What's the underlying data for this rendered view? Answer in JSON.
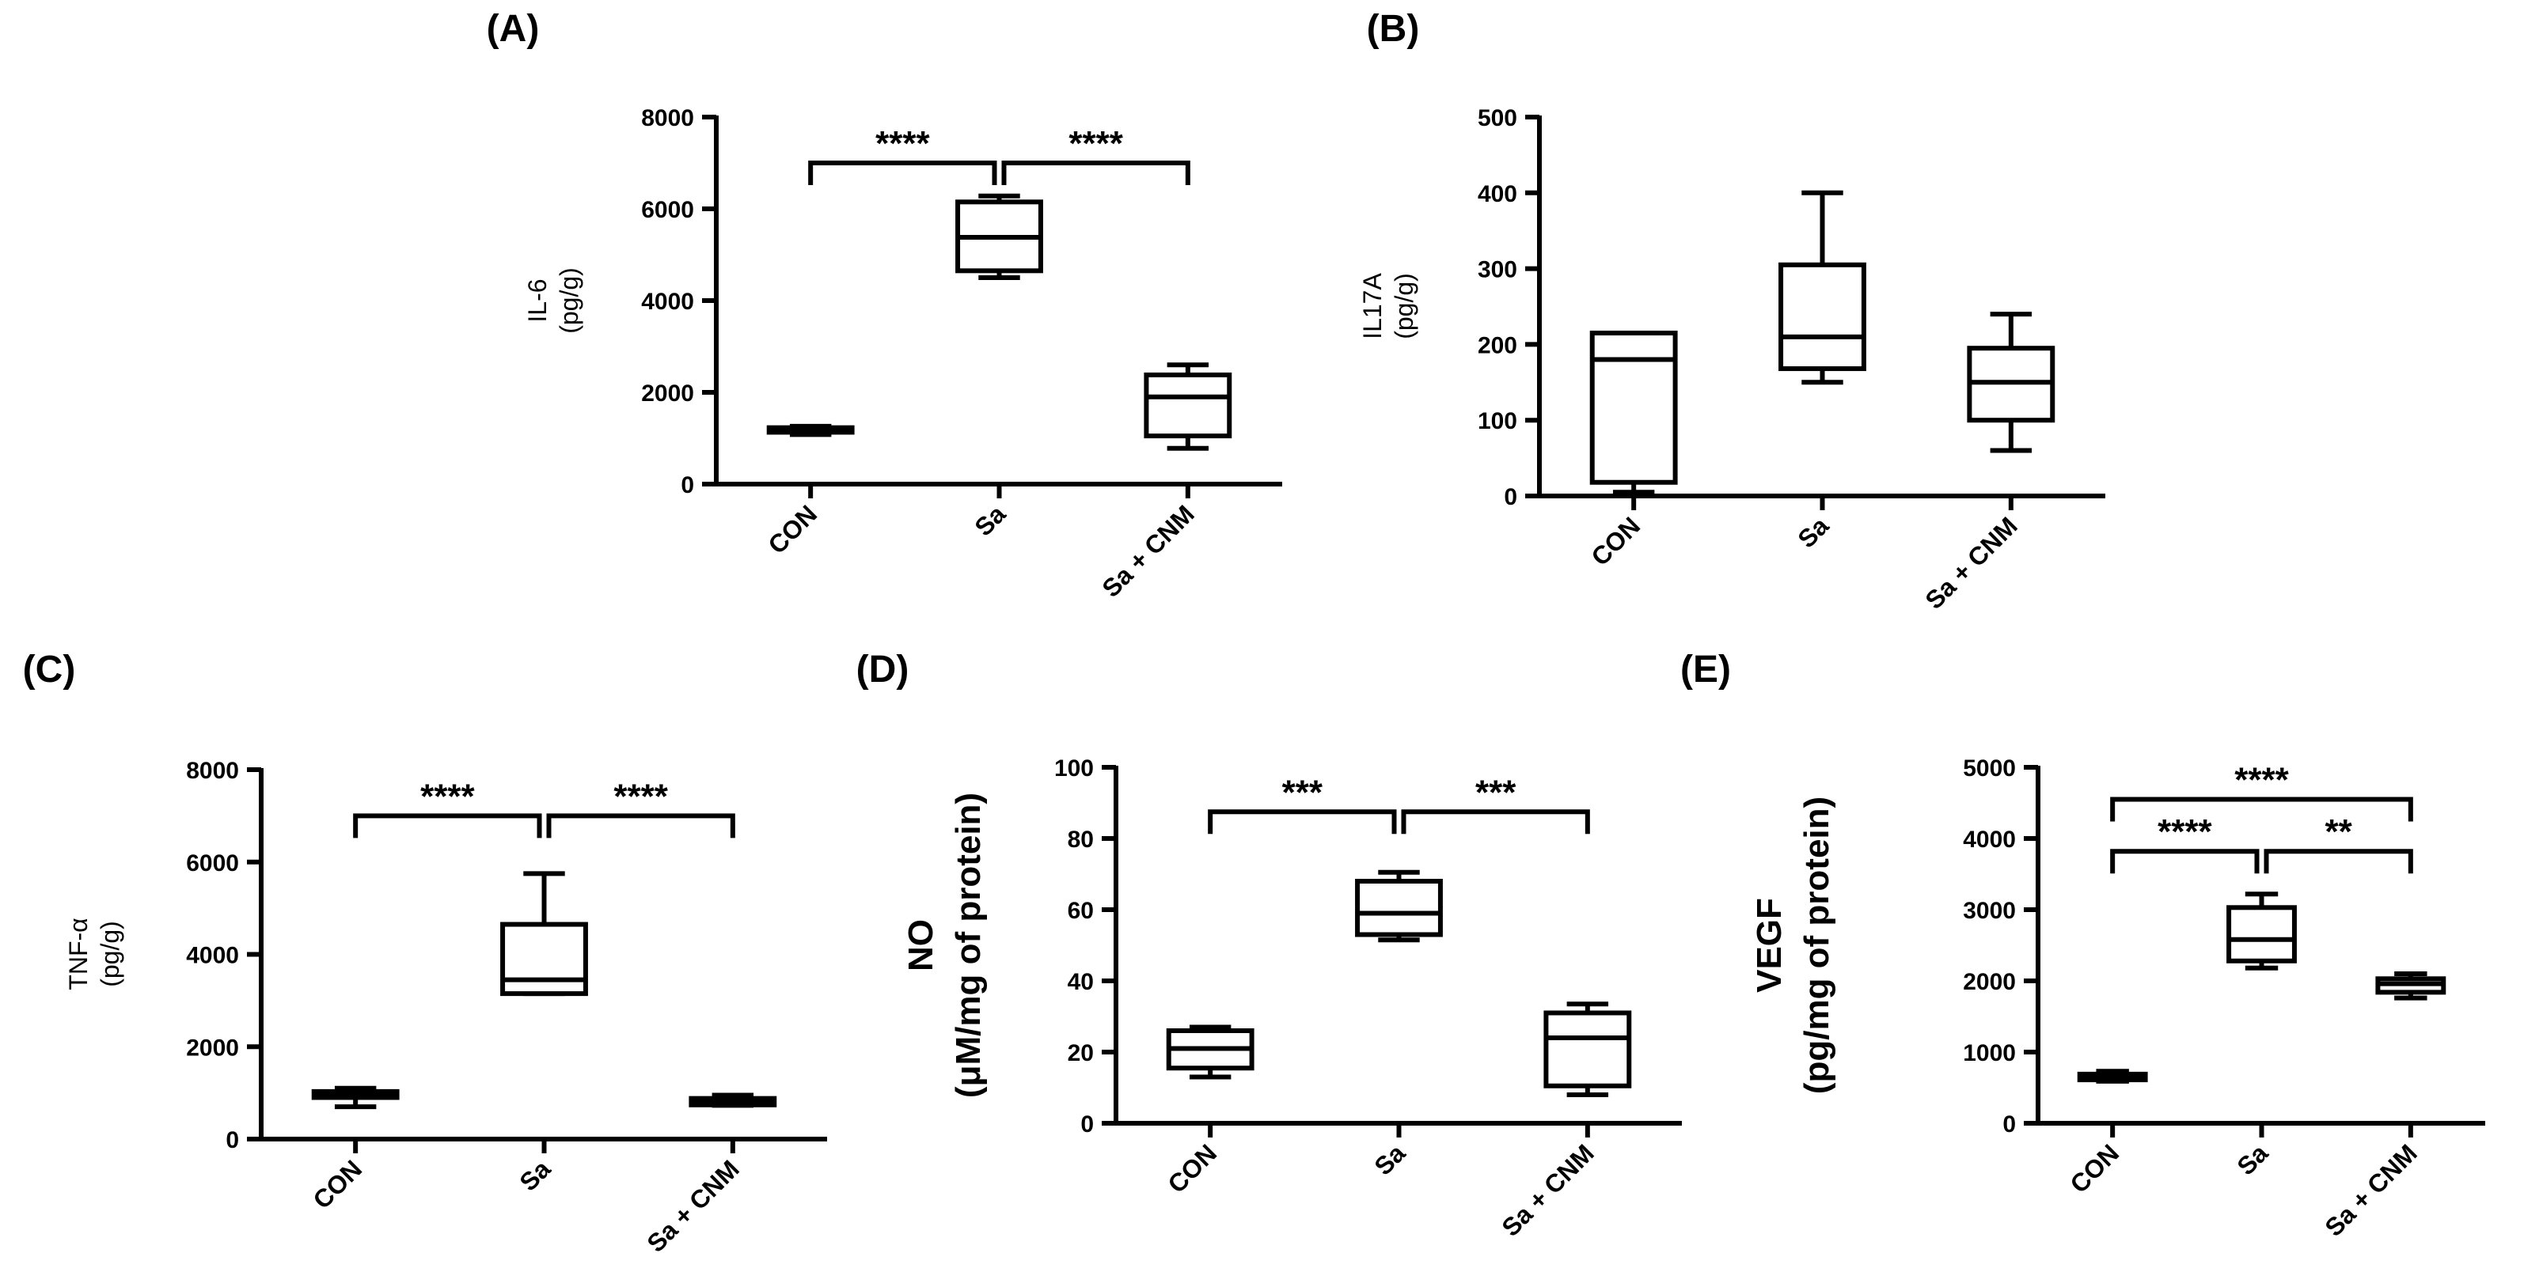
{
  "chart_data": [
    {
      "type": "box",
      "panel": "(A)",
      "ylabel": [
        "IL-6",
        "(pg/g)"
      ],
      "ylim": [
        0,
        8000
      ],
      "yticks": [
        "0",
        "2000",
        "4000",
        "6000",
        "8000"
      ],
      "categories": [
        "CON",
        "Sa",
        "Sa + CNM"
      ],
      "boxes": [
        {
          "min": 1080,
          "q1": 1130,
          "median": 1180,
          "q3": 1230,
          "max": 1260
        },
        {
          "min": 4500,
          "q1": 4650,
          "median": 5380,
          "q3": 6150,
          "max": 6280
        },
        {
          "min": 780,
          "q1": 1050,
          "median": 1900,
          "q3": 2380,
          "max": 2600
        }
      ],
      "significance": [
        {
          "from": 0,
          "to": 1,
          "label": "****",
          "y": 7000
        },
        {
          "from": 1,
          "to": 2,
          "label": "****",
          "y": 7000
        }
      ]
    },
    {
      "type": "box",
      "panel": "(B)",
      "ylabel": [
        "IL17A",
        "(pg/g)"
      ],
      "ylim": [
        0,
        500
      ],
      "yticks": [
        "0",
        "100",
        "200",
        "300",
        "400",
        "500"
      ],
      "categories": [
        "CON",
        "Sa",
        "Sa + CNM"
      ],
      "boxes": [
        {
          "min": 5,
          "q1": 18,
          "median": 180,
          "q3": 215,
          "max": 215
        },
        {
          "min": 150,
          "q1": 168,
          "median": 210,
          "q3": 305,
          "max": 400
        },
        {
          "min": 60,
          "q1": 100,
          "median": 150,
          "q3": 195,
          "max": 240
        }
      ],
      "significance": []
    },
    {
      "type": "box",
      "panel": "(C)",
      "ylabel": [
        "TNF-α",
        "(pg/g)"
      ],
      "ylim": [
        0,
        8000
      ],
      "yticks": [
        "0",
        "2000",
        "4000",
        "6000",
        "8000"
      ],
      "categories": [
        "CON",
        "Sa",
        "Sa + CNM"
      ],
      "boxes": [
        {
          "min": 700,
          "q1": 900,
          "median": 950,
          "q3": 1030,
          "max": 1100
        },
        {
          "min": 3150,
          "q1": 3150,
          "median": 3450,
          "q3": 4650,
          "max": 5750
        },
        {
          "min": 730,
          "q1": 740,
          "median": 800,
          "q3": 880,
          "max": 950
        }
      ],
      "significance": [
        {
          "from": 0,
          "to": 1,
          "label": "****",
          "y": 7000
        },
        {
          "from": 1,
          "to": 2,
          "label": "****",
          "y": 7000
        }
      ]
    },
    {
      "type": "box",
      "panel": "(D)",
      "ylabel": [
        "NO",
        "(μM/mg of protein)"
      ],
      "ylim": [
        0,
        100
      ],
      "yticks": [
        "0",
        "20",
        "40",
        "60",
        "80",
        "100"
      ],
      "categories": [
        "CON",
        "Sa",
        "Sa + CNM"
      ],
      "boxes": [
        {
          "min": 13,
          "q1": 15.5,
          "median": 21,
          "q3": 26,
          "max": 27
        },
        {
          "min": 51.5,
          "q1": 53,
          "median": 59,
          "q3": 68,
          "max": 70.5
        },
        {
          "min": 8,
          "q1": 10.5,
          "median": 24,
          "q3": 31,
          "max": 33.5
        }
      ],
      "significance": [
        {
          "from": 0,
          "to": 1,
          "label": "***",
          "y": 87.5
        },
        {
          "from": 1,
          "to": 2,
          "label": "***",
          "y": 87.5
        }
      ]
    },
    {
      "type": "box",
      "panel": "(E)",
      "ylabel": [
        "VEGF",
        "(pg/mg of protein)"
      ],
      "ylim": [
        0,
        5000
      ],
      "yticks": [
        "0",
        "1000",
        "2000",
        "3000",
        "4000",
        "5000"
      ],
      "categories": [
        "CON",
        "Sa",
        "Sa + CNM"
      ],
      "boxes": [
        {
          "min": 590,
          "q1": 610,
          "median": 650,
          "q3": 690,
          "max": 730
        },
        {
          "min": 2180,
          "q1": 2280,
          "median": 2580,
          "q3": 3030,
          "max": 3220
        },
        {
          "min": 1760,
          "q1": 1840,
          "median": 1960,
          "q3": 2030,
          "max": 2100
        }
      ],
      "significance": [
        {
          "from": 0,
          "to": 2,
          "label": "****",
          "y": 4550
        },
        {
          "from": 0,
          "to": 1,
          "label": "****",
          "y": 3820
        },
        {
          "from": 1,
          "to": 2,
          "label": "**",
          "y": 3820
        }
      ]
    }
  ]
}
